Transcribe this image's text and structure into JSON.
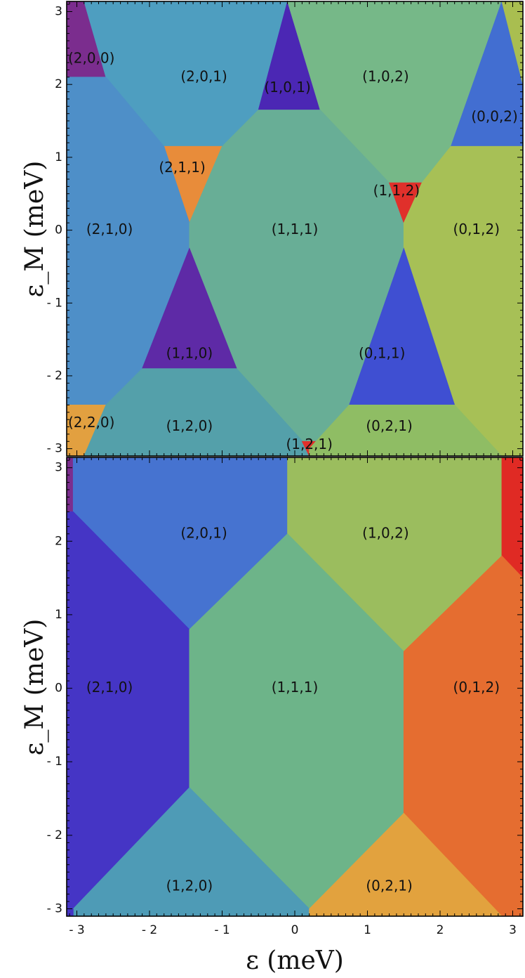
{
  "chart_data": [
    {
      "type": "region-map",
      "xlabel": "",
      "ylabel": "ε_M (meV)",
      "xlim": [
        -3.14,
        3.14
      ],
      "ylim": [
        -3.1,
        3.14
      ],
      "x_ticks": [
        -3,
        -2,
        -1,
        0,
        1,
        2,
        3
      ],
      "y_ticks": [
        -3,
        -2,
        -1,
        0,
        1,
        2,
        3
      ],
      "tick_labels": [
        "- 3",
        "- 2",
        "- 1",
        "0",
        "1",
        "2",
        "3"
      ],
      "x_tick_labels_shown": false,
      "regions": [
        {
          "label": "(2,0,0)",
          "label_pos": [
            -2.8,
            2.35
          ],
          "color": "#7b2d8e",
          "polygon": [
            [
              -3.14,
              3.14
            ],
            [
              -2.9,
              3.14
            ],
            [
              -2.6,
              2.1
            ],
            [
              -3.14,
              2.1
            ]
          ]
        },
        {
          "label": "(2,0,1)",
          "label_pos": [
            -1.25,
            2.1
          ],
          "color": "#4e9ec0",
          "polygon": [
            [
              -2.9,
              3.14
            ],
            [
              -0.1,
              3.14
            ],
            [
              -0.5,
              1.65
            ],
            [
              -1.0,
              1.15
            ],
            [
              -1.8,
              1.15
            ],
            [
              -2.6,
              2.1
            ]
          ]
        },
        {
          "label": "(1,0,1)",
          "label_pos": [
            -0.1,
            1.95
          ],
          "color": "#4b27b4",
          "polygon": [
            [
              -0.5,
              1.65
            ],
            [
              -0.1,
              3.14
            ],
            [
              0.35,
              1.65
            ]
          ]
        },
        {
          "label": "(1,0,2)",
          "label_pos": [
            1.25,
            2.1
          ],
          "color": "#76b888",
          "polygon": [
            [
              -0.1,
              3.14
            ],
            [
              2.85,
              3.14
            ],
            [
              2.15,
              1.15
            ],
            [
              1.75,
              0.65
            ],
            [
              1.3,
              0.65
            ],
            [
              0.35,
              1.65
            ]
          ]
        },
        {
          "label": "(0,0,2)",
          "label_pos": [
            2.75,
            1.55
          ],
          "color": "#426ed1",
          "polygon": [
            [
              2.15,
              1.15
            ],
            [
              2.85,
              3.14
            ],
            [
              3.14,
              2.0
            ],
            [
              3.14,
              1.15
            ]
          ]
        },
        {
          "label": "",
          "label_pos": [
            3.05,
            2.8
          ],
          "color": "#a9be50",
          "polygon": [
            [
              2.85,
              3.14
            ],
            [
              3.14,
              3.14
            ],
            [
              3.14,
              2.0
            ]
          ]
        },
        {
          "label": "(2,1,1)",
          "label_pos": [
            -1.55,
            0.85
          ],
          "color": "#e88c3a",
          "polygon": [
            [
              -1.8,
              1.15
            ],
            [
              -1.0,
              1.15
            ],
            [
              -1.45,
              0.1
            ]
          ]
        },
        {
          "label": "(2,1,0)",
          "label_pos": [
            -2.55,
            0.0
          ],
          "color": "#4e8fc8",
          "polygon": [
            [
              -3.14,
              2.1
            ],
            [
              -2.6,
              2.1
            ],
            [
              -1.8,
              1.15
            ],
            [
              -1.45,
              0.1
            ],
            [
              -1.45,
              -0.25
            ],
            [
              -2.1,
              -1.9
            ],
            [
              -2.6,
              -2.4
            ],
            [
              -3.14,
              -2.4
            ]
          ]
        },
        {
          "label": "(1,1,1)",
          "label_pos": [
            0.0,
            0.0
          ],
          "color": "#68ae96",
          "polygon": [
            [
              -1.45,
              0.1
            ],
            [
              -1.0,
              1.15
            ],
            [
              -0.5,
              1.65
            ],
            [
              0.35,
              1.65
            ],
            [
              1.3,
              0.65
            ],
            [
              1.5,
              0.1
            ],
            [
              1.5,
              -0.25
            ],
            [
              0.75,
              -2.4
            ],
            [
              0.2,
              -3.0
            ],
            [
              -0.8,
              -1.9
            ],
            [
              -1.45,
              -0.25
            ]
          ]
        },
        {
          "label": "(1,1,2)",
          "label_pos": [
            1.4,
            0.53
          ],
          "color": "#e0302b",
          "polygon": [
            [
              1.3,
              0.65
            ],
            [
              1.75,
              0.65
            ],
            [
              1.5,
              0.1
            ]
          ]
        },
        {
          "label": "(0,1,2)",
          "label_pos": [
            2.5,
            0.0
          ],
          "color": "#a7c056",
          "polygon": [
            [
              1.5,
              0.1
            ],
            [
              1.75,
              0.65
            ],
            [
              2.15,
              1.15
            ],
            [
              3.14,
              1.15
            ],
            [
              3.14,
              -3.1
            ],
            [
              2.85,
              -3.1
            ],
            [
              2.2,
              -2.4
            ],
            [
              1.5,
              -0.25
            ]
          ]
        },
        {
          "label": "(1,1,0)",
          "label_pos": [
            -1.45,
            -1.7
          ],
          "color": "#5e2aa6",
          "polygon": [
            [
              -1.45,
              -0.25
            ],
            [
              -0.8,
              -1.9
            ],
            [
              -2.1,
              -1.9
            ]
          ]
        },
        {
          "label": "(0,1,1)",
          "label_pos": [
            1.2,
            -1.7
          ],
          "color": "#3f4fd2",
          "polygon": [
            [
              1.5,
              -0.25
            ],
            [
              2.2,
              -2.4
            ],
            [
              0.75,
              -2.4
            ]
          ]
        },
        {
          "label": "(2,2,0)",
          "label_pos": [
            -2.8,
            -2.65
          ],
          "color": "#e2a040",
          "polygon": [
            [
              -3.14,
              -2.4
            ],
            [
              -2.6,
              -2.4
            ],
            [
              -2.9,
              -3.1
            ],
            [
              -3.14,
              -3.1
            ]
          ]
        },
        {
          "label": "(1,2,0)",
          "label_pos": [
            -1.45,
            -2.7
          ],
          "color": "#54a0aa",
          "polygon": [
            [
              -2.6,
              -2.4
            ],
            [
              -2.1,
              -1.9
            ],
            [
              -0.8,
              -1.9
            ],
            [
              0.2,
              -3.0
            ],
            [
              0.2,
              -3.1
            ],
            [
              -2.9,
              -3.1
            ]
          ]
        },
        {
          "label": "(1,2,1)",
          "label_pos": [
            0.2,
            -2.95
          ],
          "color": "#e0302b",
          "polygon": [
            [
              0.1,
              -2.9
            ],
            [
              0.3,
              -2.9
            ],
            [
              0.2,
              -3.1
            ]
          ]
        },
        {
          "label": "(0,2,1)",
          "label_pos": [
            1.3,
            -2.7
          ],
          "color": "#8fbd64",
          "polygon": [
            [
              0.2,
              -3.0
            ],
            [
              0.75,
              -2.4
            ],
            [
              2.2,
              -2.4
            ],
            [
              2.85,
              -3.1
            ],
            [
              0.2,
              -3.1
            ]
          ]
        }
      ]
    },
    {
      "type": "region-map",
      "xlabel": "ε (meV)",
      "ylabel": "ε_M (meV)",
      "xlim": [
        -3.14,
        3.14
      ],
      "ylim": [
        -3.1,
        3.14
      ],
      "x_ticks": [
        -3,
        -2,
        -1,
        0,
        1,
        2,
        3
      ],
      "y_ticks": [
        -3,
        -2,
        -1,
        0,
        1,
        2,
        3
      ],
      "tick_labels": [
        "- 3",
        "- 2",
        "- 1",
        "0",
        "1",
        "2",
        "3"
      ],
      "x_tick_labels_shown": true,
      "regions": [
        {
          "label": "",
          "label_pos": [
            -3.1,
            2.9
          ],
          "color": "#7b2d8e",
          "polygon": [
            [
              -3.14,
              3.14
            ],
            [
              -3.05,
              3.14
            ],
            [
              -3.05,
              2.4
            ],
            [
              -3.14,
              2.4
            ]
          ]
        },
        {
          "label": "(2,0,1)",
          "label_pos": [
            -1.25,
            2.1
          ],
          "color": "#4673d0",
          "polygon": [
            [
              -3.05,
              3.14
            ],
            [
              -0.1,
              3.14
            ],
            [
              -0.1,
              2.1
            ],
            [
              -1.45,
              0.8
            ],
            [
              -3.05,
              2.4
            ]
          ]
        },
        {
          "label": "(1,0,2)",
          "label_pos": [
            1.25,
            2.1
          ],
          "color": "#9bbd5e",
          "polygon": [
            [
              -0.1,
              3.14
            ],
            [
              2.85,
              3.14
            ],
            [
              2.85,
              1.8
            ],
            [
              1.5,
              0.5
            ],
            [
              -0.1,
              2.1
            ]
          ]
        },
        {
          "label": "",
          "label_pos": [
            3.0,
            2.5
          ],
          "color": "#e02a24",
          "polygon": [
            [
              2.85,
              3.14
            ],
            [
              3.14,
              3.14
            ],
            [
              3.14,
              1.5
            ],
            [
              2.85,
              1.8
            ]
          ]
        },
        {
          "label": "(2,1,0)",
          "label_pos": [
            -2.55,
            0.0
          ],
          "color": "#4535c5",
          "polygon": [
            [
              -3.14,
              2.4
            ],
            [
              -3.05,
              2.4
            ],
            [
              -1.45,
              0.8
            ],
            [
              -1.45,
              -1.35
            ],
            [
              -3.05,
              -3.0
            ],
            [
              -3.14,
              -3.0
            ]
          ]
        },
        {
          "label": "(1,1,1)",
          "label_pos": [
            0.0,
            0.0
          ],
          "color": "#6db489",
          "polygon": [
            [
              -1.45,
              0.8
            ],
            [
              -0.1,
              2.1
            ],
            [
              1.5,
              0.5
            ],
            [
              1.5,
              -1.7
            ],
            [
              0.2,
              -3.0
            ],
            [
              -1.45,
              -1.35
            ]
          ]
        },
        {
          "label": "(0,1,2)",
          "label_pos": [
            2.5,
            0.0
          ],
          "color": "#e56d30",
          "polygon": [
            [
              1.5,
              0.5
            ],
            [
              2.85,
              1.8
            ],
            [
              3.14,
              1.5
            ],
            [
              3.14,
              -3.1
            ],
            [
              2.85,
              -3.1
            ],
            [
              1.5,
              -1.7
            ]
          ]
        },
        {
          "label": "(1,2,0)",
          "label_pos": [
            -1.45,
            -2.7
          ],
          "color": "#4e9bb6",
          "polygon": [
            [
              -3.05,
              -3.0
            ],
            [
              -1.45,
              -1.35
            ],
            [
              0.2,
              -3.0
            ],
            [
              0.2,
              -3.1
            ],
            [
              -3.05,
              -3.1
            ]
          ]
        },
        {
          "label": "",
          "label_pos": [
            -3.1,
            -3.05
          ],
          "color": "#4535c5",
          "polygon": [
            [
              -3.14,
              -3.0
            ],
            [
              -3.05,
              -3.0
            ],
            [
              -3.05,
              -3.1
            ],
            [
              -3.14,
              -3.1
            ]
          ]
        },
        {
          "label": "(0,2,1)",
          "label_pos": [
            1.3,
            -2.7
          ],
          "color": "#e2a23e",
          "polygon": [
            [
              0.2,
              -3.0
            ],
            [
              1.5,
              -1.7
            ],
            [
              2.85,
              -3.1
            ],
            [
              0.2,
              -3.1
            ]
          ]
        }
      ]
    }
  ]
}
